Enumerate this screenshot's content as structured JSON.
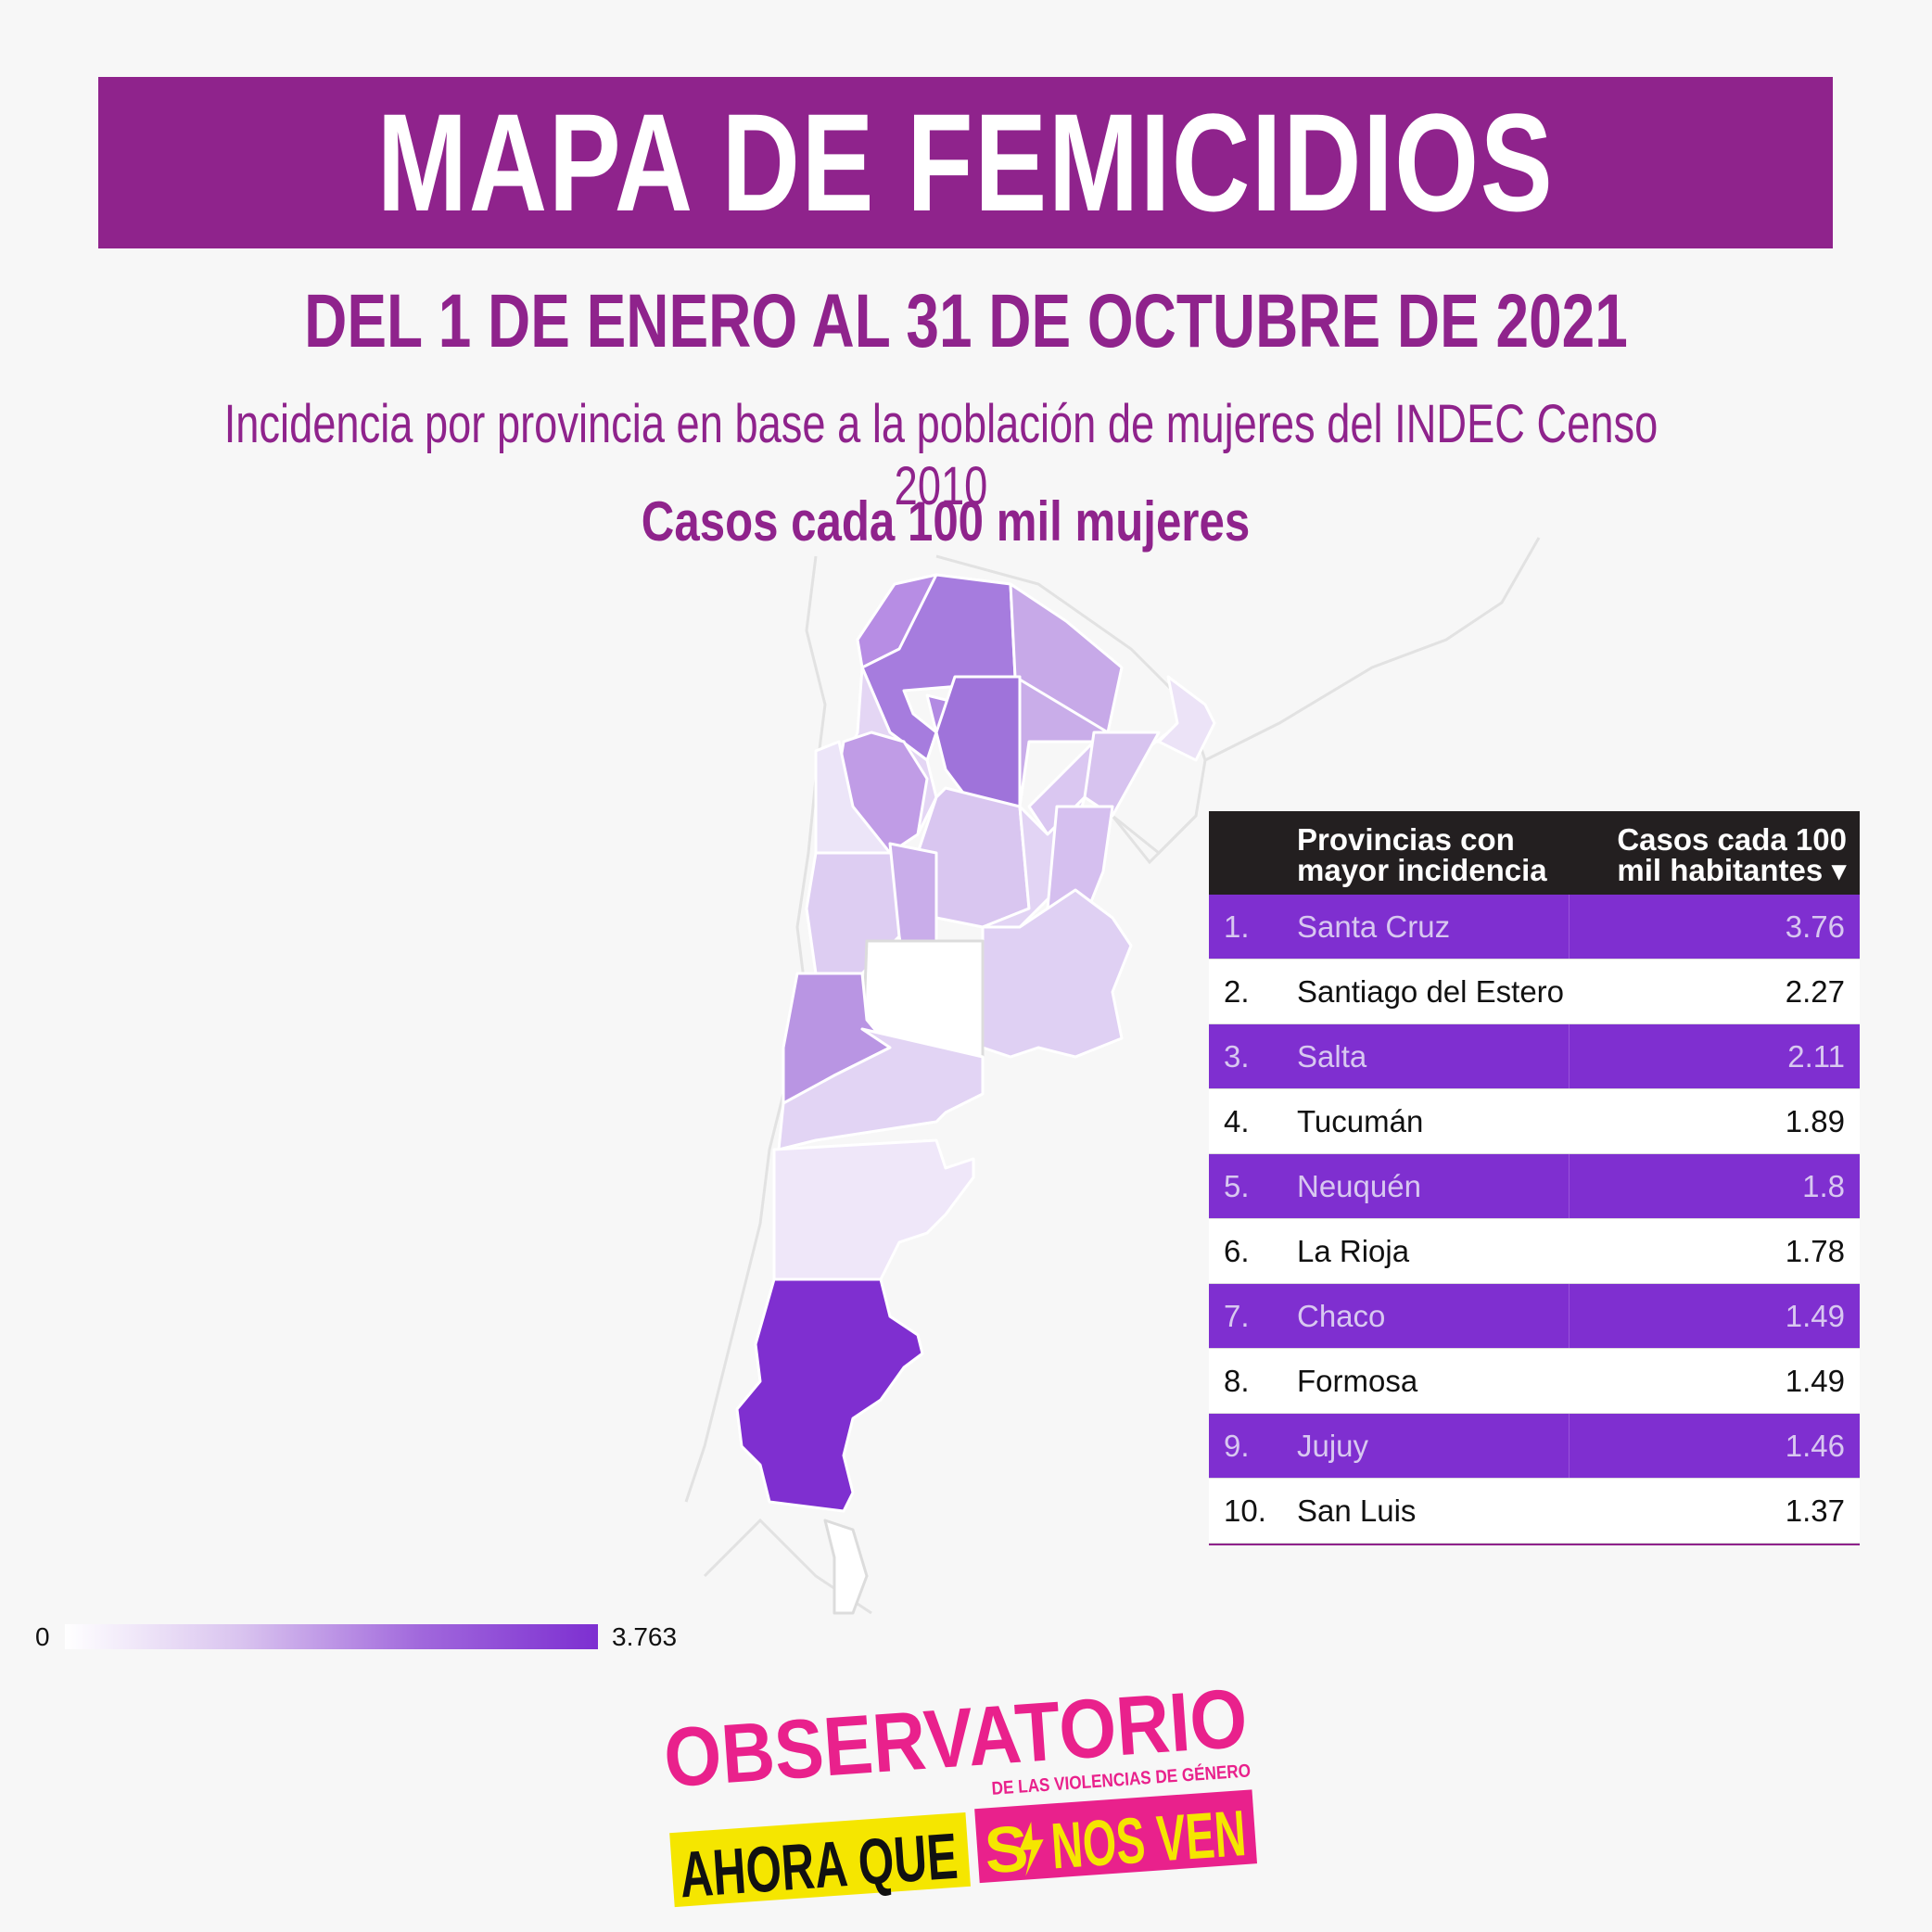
{
  "header": {
    "title": "MAPA DE FEMICIDIOS",
    "subtitle": "DEL 1 DE ENERO AL 31 DE OCTUBRE DE 2021",
    "description": "Incidencia por provincia en base a la población de mujeres del INDEC Censo 2010",
    "legend_title": "Casos cada 100 mil mujeres"
  },
  "table": {
    "col1_header": "Provincias con mayor incidencia",
    "col2_header": "Casos cada 100 mil habitantes",
    "rows": [
      {
        "rank": "1.",
        "name": "Santa Cruz",
        "value": "3.76"
      },
      {
        "rank": "2.",
        "name": "Santiago del Estero",
        "value": "2.27"
      },
      {
        "rank": "3.",
        "name": "Salta",
        "value": "2.11"
      },
      {
        "rank": "4.",
        "name": "Tucumán",
        "value": "1.89"
      },
      {
        "rank": "5.",
        "name": "Neuquén",
        "value": "1.8"
      },
      {
        "rank": "6.",
        "name": "La Rioja",
        "value": "1.78"
      },
      {
        "rank": "7.",
        "name": "Chaco",
        "value": "1.49"
      },
      {
        "rank": "8.",
        "name": "Formosa",
        "value": "1.49"
      },
      {
        "rank": "9.",
        "name": "Jujuy",
        "value": "1.46"
      },
      {
        "rank": "10.",
        "name": "San Luis",
        "value": "1.37"
      }
    ]
  },
  "scale": {
    "min": "0",
    "max": "3.763"
  },
  "colors": {
    "title_bg": "#8f238c",
    "accent_purple": "#7f2fd0",
    "logo_pink": "#e9218c",
    "logo_yellow": "#f5e600"
  },
  "logo": {
    "line1": "OBSERVATORIO",
    "line2": "DE LAS VIOLENCIAS DE GÉNERO",
    "line3a": "AHORA QUE",
    "line3b": "S",
    "line3c": "NOS VEN"
  }
}
